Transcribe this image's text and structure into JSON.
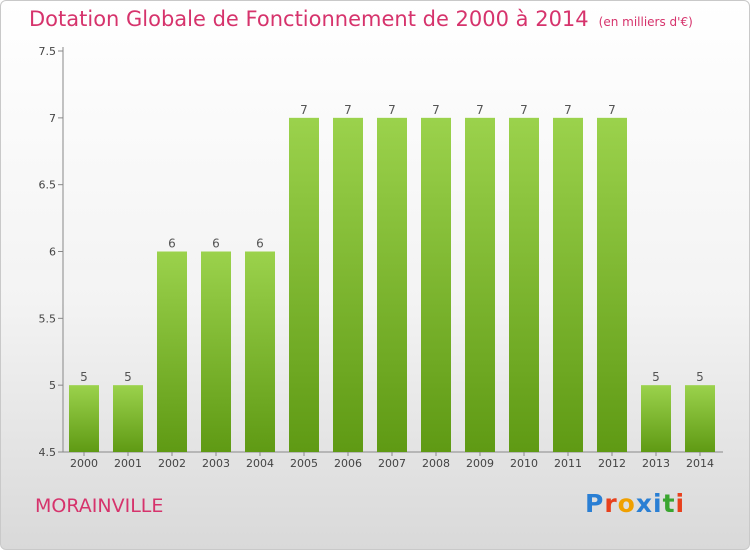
{
  "title": "Dotation Globale de Fonctionnement de 2000 à 2014",
  "unit_note": "(en milliers d'€)",
  "city": "MORAINVILLE",
  "logo_text": "Proxiti",
  "colors": {
    "title": "#d6336c",
    "bar_top": "#9bd24c",
    "bar_bottom": "#5f9a14",
    "logo": [
      "#2a7fd4",
      "#e8401c",
      "#f0a000",
      "#2a7fd4",
      "#2a7fd4",
      "#3aa52f",
      "#e8401c"
    ]
  },
  "chart_data": {
    "type": "bar",
    "title": "Dotation Globale de Fonctionnement de 2000 à 2014",
    "xlabel": "",
    "ylabel": "",
    "categories": [
      "2000",
      "2001",
      "2002",
      "2003",
      "2004",
      "2005",
      "2006",
      "2007",
      "2008",
      "2009",
      "2010",
      "2011",
      "2012",
      "2013",
      "2014"
    ],
    "values": [
      5,
      5,
      6,
      6,
      6,
      7,
      7,
      7,
      7,
      7,
      7,
      7,
      7,
      5,
      5
    ],
    "data_labels": [
      "5",
      "5",
      "6",
      "6",
      "6",
      "7",
      "7",
      "7",
      "7",
      "7",
      "7",
      "7",
      "7",
      "5",
      "5"
    ],
    "ylim": [
      4.5,
      7.5
    ],
    "yticks": [
      4.5,
      5,
      5.5,
      6,
      6.5,
      7,
      7.5
    ],
    "ytick_labels": [
      "4.5",
      "5",
      "5.5",
      "6",
      "6.5",
      "7",
      "7.5"
    ],
    "grid": false,
    "legend": "none"
  }
}
